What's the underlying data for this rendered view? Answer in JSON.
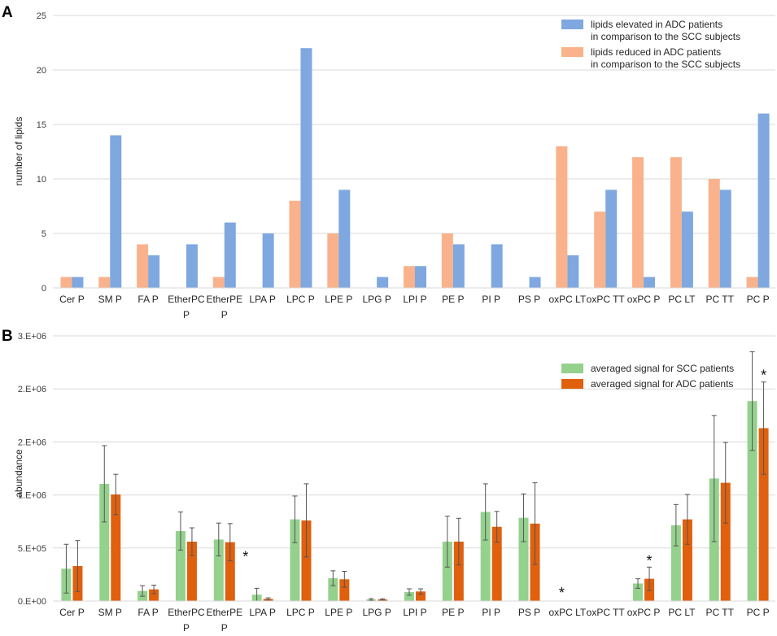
{
  "colors": {
    "elevated": "#7ea8df",
    "reduced": "#f9b28b",
    "scc": "#94d18d",
    "adc": "#e0600e",
    "grid": "#d9d9d9",
    "errorbar": "#555555"
  },
  "chart_data": [
    {
      "panel": "A",
      "type": "bar",
      "xlabel": "",
      "ylabel": "number of lipids",
      "ylim": [
        0,
        25
      ],
      "yticks": [
        "0",
        "5",
        "10",
        "15",
        "20",
        "25"
      ],
      "ytick_values": [
        0,
        5,
        10,
        15,
        20,
        25
      ],
      "grid": true,
      "legend_position": "top-right",
      "categories": [
        [
          "Cer P"
        ],
        [
          "SM P"
        ],
        [
          "FA P"
        ],
        [
          "EtherPC",
          "P"
        ],
        [
          "EtherPE",
          "P"
        ],
        [
          "LPA P"
        ],
        [
          "LPC P"
        ],
        [
          "LPE P"
        ],
        [
          "LPG P"
        ],
        [
          "LPI P"
        ],
        [
          "PE P"
        ],
        [
          "PI P"
        ],
        [
          "PS P"
        ],
        [
          "oxPC LT"
        ],
        [
          "oxPC TT"
        ],
        [
          "oxPC P"
        ],
        [
          "PC LT"
        ],
        [
          "PC TT"
        ],
        [
          "PC P"
        ]
      ],
      "series": [
        {
          "name": "lipids reduced in ADC patients in comparison to the SCC subjects",
          "legend_lines": [
            "lipids reduced in ADC patients",
            "in comparison to the SCC subjects"
          ],
          "color_key": "reduced",
          "values": [
            1,
            1,
            4,
            0,
            1,
            0,
            8,
            5,
            0,
            2,
            5,
            0,
            0,
            13,
            7,
            12,
            12,
            10,
            1
          ]
        },
        {
          "name": "lipids elevated in ADC patients in comparison to the SCC subjects",
          "legend_lines": [
            "lipids elevated in ADC patients",
            "in comparison to the SCC subjects"
          ],
          "color_key": "elevated",
          "values": [
            1,
            14,
            3,
            4,
            6,
            5,
            22,
            9,
            1,
            2,
            4,
            4,
            1,
            3,
            9,
            1,
            7,
            9,
            16
          ]
        }
      ],
      "legend_order": [
        1,
        0
      ]
    },
    {
      "panel": "B",
      "type": "bar",
      "xlabel": "",
      "ylabel": "abundance",
      "ylim": [
        0,
        2500000
      ],
      "yticks": [
        "0.E+00",
        "5.E+05",
        "1.E+06",
        "2.E+06",
        "2.E+06",
        "3.E+06"
      ],
      "ytick_values": [
        0,
        500000,
        1000000,
        1500000,
        2000000,
        2500000
      ],
      "grid": true,
      "legend_position": "top-right",
      "categories": [
        [
          "Cer P"
        ],
        [
          "SM P"
        ],
        [
          "FA P"
        ],
        [
          "EtherPC",
          "P"
        ],
        [
          "EtherPE",
          "P"
        ],
        [
          "LPA P"
        ],
        [
          "LPC P"
        ],
        [
          "LPE P"
        ],
        [
          "LPG P"
        ],
        [
          "LPI P"
        ],
        [
          "PE P"
        ],
        [
          "PI P"
        ],
        [
          "PS P"
        ],
        [
          "oxPC LT"
        ],
        [
          "oxPC TT"
        ],
        [
          "oxPC P"
        ],
        [
          "PC LT"
        ],
        [
          "PC TT"
        ],
        [
          "PC P"
        ]
      ],
      "series": [
        {
          "name": "averaged signal for SCC patients",
          "legend_lines": [
            "averaged signal for SCC patients"
          ],
          "color_key": "scc",
          "values": [
            305000,
            1105000,
            95000,
            660000,
            580000,
            60000,
            770000,
            215000,
            15000,
            85000,
            560000,
            840000,
            785000,
            0,
            0,
            165000,
            715000,
            1155000,
            1885000
          ],
          "errors": [
            230000,
            360000,
            50000,
            180000,
            155000,
            60000,
            220000,
            70000,
            8000,
            30000,
            240000,
            265000,
            225000,
            0,
            0,
            45000,
            195000,
            595000,
            465000
          ]
        },
        {
          "name": "averaged signal for ADC patients",
          "legend_lines": [
            "averaged signal for ADC patients"
          ],
          "color_key": "adc",
          "values": [
            330000,
            1005000,
            110000,
            560000,
            555000,
            20000,
            760000,
            205000,
            15000,
            90000,
            560000,
            700000,
            730000,
            0,
            0,
            210000,
            770000,
            1115000,
            1630000
          ],
          "errors": [
            240000,
            190000,
            40000,
            130000,
            175000,
            10000,
            345000,
            75000,
            6000,
            25000,
            220000,
            145000,
            385000,
            0,
            0,
            110000,
            235000,
            380000,
            435000
          ]
        }
      ],
      "annotations": [
        {
          "text": "*",
          "category": "EtherPE P",
          "series": 1
        },
        {
          "text": "*",
          "category": "oxPC LT",
          "series": 0
        },
        {
          "text": "*",
          "category": "oxPC P",
          "series": 1
        },
        {
          "text": "*",
          "category": "PC P",
          "series": 1
        }
      ]
    }
  ]
}
